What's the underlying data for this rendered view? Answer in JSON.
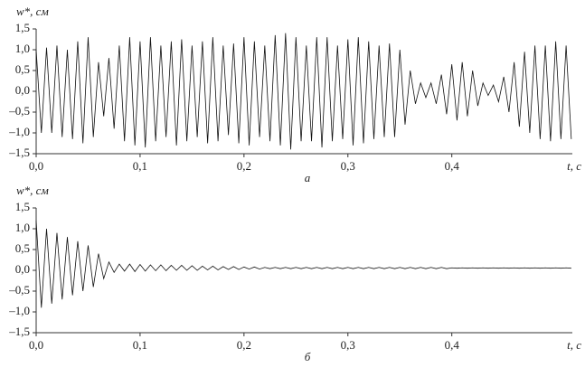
{
  "chart_data": [
    {
      "type": "line",
      "caption": "а",
      "y_label": "w*, см",
      "x_label": "t, с",
      "color": "#111",
      "xlim": [
        0,
        0.516
      ],
      "ylim": [
        -1.5,
        1.5
      ],
      "xticks": [
        {
          "value": 0,
          "label": "0,0"
        },
        {
          "value": 0.1,
          "label": "0,1"
        },
        {
          "value": 0.2,
          "label": "0,2"
        },
        {
          "value": 0.3,
          "label": "0,3"
        },
        {
          "value": 0.4,
          "label": "0,4"
        }
      ],
      "yticks": [
        {
          "value": 1.5,
          "label": "1,5"
        },
        {
          "value": 1.0,
          "label": "1,0"
        },
        {
          "value": 0.5,
          "label": "0,5"
        },
        {
          "value": 0,
          "label": "0,0"
        },
        {
          "value": -0.5,
          "label": "–0,5"
        },
        {
          "value": -1.0,
          "label": "–1,0"
        },
        {
          "value": -1.5,
          "label": "–1,5"
        }
      ],
      "x": [
        0,
        0.005,
        0.01,
        0.015,
        0.02,
        0.025,
        0.03,
        0.035,
        0.04,
        0.045,
        0.05,
        0.055,
        0.06,
        0.065,
        0.07,
        0.075,
        0.08,
        0.085,
        0.09,
        0.095,
        0.1,
        0.105,
        0.11,
        0.115,
        0.12,
        0.125,
        0.13,
        0.135,
        0.14,
        0.145,
        0.15,
        0.155,
        0.16,
        0.165,
        0.17,
        0.175,
        0.18,
        0.185,
        0.19,
        0.195,
        0.2,
        0.205,
        0.21,
        0.215,
        0.22,
        0.225,
        0.23,
        0.235,
        0.24,
        0.245,
        0.25,
        0.255,
        0.26,
        0.265,
        0.27,
        0.275,
        0.28,
        0.285,
        0.29,
        0.295,
        0.3,
        0.305,
        0.31,
        0.315,
        0.32,
        0.325,
        0.33,
        0.335,
        0.34,
        0.345,
        0.35,
        0.355,
        0.36,
        0.365,
        0.37,
        0.375,
        0.38,
        0.385,
        0.39,
        0.395,
        0.4,
        0.405,
        0.41,
        0.415,
        0.42,
        0.425,
        0.43,
        0.435,
        0.44,
        0.445,
        0.45,
        0.455,
        0.46,
        0.465,
        0.47,
        0.475,
        0.48,
        0.485,
        0.49,
        0.495,
        0.5,
        0.505,
        0.51,
        0.515
      ],
      "values": [
        1.0,
        -1.0,
        1.05,
        -1.0,
        1.1,
        -1.1,
        1.0,
        -1.15,
        1.2,
        -1.25,
        1.3,
        -1.1,
        0.7,
        -0.6,
        0.8,
        -0.9,
        1.1,
        -1.2,
        1.3,
        -1.3,
        1.2,
        -1.35,
        1.3,
        -1.2,
        1.1,
        -1.1,
        1.2,
        -1.3,
        1.25,
        -1.2,
        1.1,
        -1.1,
        1.2,
        -1.25,
        1.3,
        -1.2,
        1.1,
        -1.05,
        1.15,
        -1.25,
        1.3,
        -1.3,
        1.2,
        -1.1,
        1.1,
        -1.2,
        1.35,
        -1.3,
        1.4,
        -1.4,
        1.3,
        -1.2,
        1.1,
        -1.2,
        1.3,
        -1.35,
        1.3,
        -1.2,
        1.1,
        -1.15,
        1.25,
        -1.3,
        1.3,
        -1.25,
        1.2,
        -1.15,
        1.1,
        -1.1,
        1.15,
        -1.1,
        1.0,
        -0.8,
        0.5,
        -0.3,
        0.2,
        -0.15,
        0.2,
        -0.3,
        0.4,
        -0.55,
        0.65,
        -0.7,
        0.7,
        -0.6,
        0.5,
        -0.35,
        0.2,
        -0.1,
        0.15,
        -0.25,
        0.35,
        -0.5,
        0.7,
        -0.85,
        0.95,
        -1.0,
        1.1,
        -1.15,
        1.1,
        -1.2,
        1.2,
        -1.15,
        1.1,
        -1.15
      ]
    },
    {
      "type": "line",
      "caption": "б",
      "y_label": "w*, см",
      "x_label": "t, с",
      "color": "#111",
      "xlim": [
        0,
        0.516
      ],
      "ylim": [
        -1.5,
        1.5
      ],
      "xticks": [
        {
          "value": 0,
          "label": "0,0"
        },
        {
          "value": 0.1,
          "label": "0,1"
        },
        {
          "value": 0.2,
          "label": "0,2"
        },
        {
          "value": 0.3,
          "label": "0,3"
        },
        {
          "value": 0.4,
          "label": "0,4"
        }
      ],
      "yticks": [
        {
          "value": 1.5,
          "label": "1,5"
        },
        {
          "value": 1.0,
          "label": "1,0"
        },
        {
          "value": 0.5,
          "label": "0,5"
        },
        {
          "value": 0,
          "label": "0,0"
        },
        {
          "value": -0.5,
          "label": "–0,5"
        },
        {
          "value": -1.0,
          "label": "–1,0"
        },
        {
          "value": -1.5,
          "label": "–1,5"
        }
      ],
      "x": [
        0,
        0.005,
        0.01,
        0.015,
        0.02,
        0.025,
        0.03,
        0.035,
        0.04,
        0.045,
        0.05,
        0.055,
        0.06,
        0.065,
        0.07,
        0.075,
        0.08,
        0.085,
        0.09,
        0.095,
        0.1,
        0.105,
        0.11,
        0.115,
        0.12,
        0.125,
        0.13,
        0.135,
        0.14,
        0.145,
        0.15,
        0.155,
        0.16,
        0.165,
        0.17,
        0.175,
        0.18,
        0.185,
        0.19,
        0.195,
        0.2,
        0.205,
        0.21,
        0.215,
        0.22,
        0.225,
        0.23,
        0.235,
        0.24,
        0.245,
        0.25,
        0.255,
        0.26,
        0.265,
        0.27,
        0.275,
        0.28,
        0.285,
        0.29,
        0.295,
        0.3,
        0.305,
        0.31,
        0.315,
        0.32,
        0.325,
        0.33,
        0.335,
        0.34,
        0.345,
        0.35,
        0.355,
        0.36,
        0.365,
        0.37,
        0.375,
        0.38,
        0.385,
        0.39,
        0.395,
        0.4,
        0.405,
        0.41,
        0.415,
        0.42,
        0.425,
        0.43,
        0.435,
        0.44,
        0.445,
        0.45,
        0.455,
        0.46,
        0.465,
        0.47,
        0.475,
        0.48,
        0.485,
        0.49,
        0.495,
        0.5,
        0.505,
        0.51,
        0.515
      ],
      "values": [
        1.2,
        -0.9,
        1.0,
        -0.8,
        0.9,
        -0.7,
        0.8,
        -0.6,
        0.7,
        -0.5,
        0.6,
        -0.4,
        0.4,
        -0.2,
        0.2,
        -0.05,
        0.15,
        -0.02,
        0.15,
        -0.03,
        0.14,
        -0.02,
        0.13,
        -0.01,
        0.13,
        -0.01,
        0.12,
        0.0,
        0.12,
        0.0,
        0.11,
        0.0,
        0.1,
        0.01,
        0.1,
        0.01,
        0.09,
        0.02,
        0.09,
        0.02,
        0.08,
        0.03,
        0.08,
        0.03,
        0.07,
        0.04,
        0.07,
        0.04,
        0.07,
        0.04,
        0.07,
        0.04,
        0.07,
        0.04,
        0.07,
        0.04,
        0.07,
        0.04,
        0.07,
        0.04,
        0.07,
        0.04,
        0.07,
        0.04,
        0.07,
        0.04,
        0.07,
        0.04,
        0.07,
        0.04,
        0.07,
        0.04,
        0.07,
        0.04,
        0.07,
        0.04,
        0.07,
        0.04,
        0.07,
        0.04,
        0.06,
        0.05,
        0.06,
        0.05,
        0.06,
        0.05,
        0.06,
        0.05,
        0.06,
        0.05,
        0.06,
        0.05,
        0.06,
        0.05,
        0.06,
        0.05,
        0.06,
        0.05,
        0.06,
        0.05,
        0.06,
        0.05,
        0.06,
        0.05
      ]
    }
  ]
}
